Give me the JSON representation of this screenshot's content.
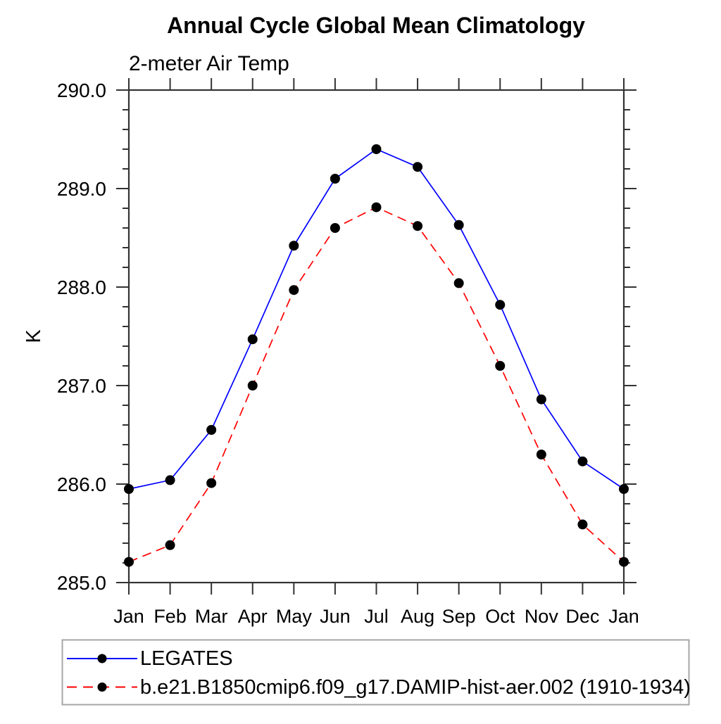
{
  "chart_data": {
    "type": "line",
    "title": "Annual Cycle Global Mean Climatology",
    "subtitle": "2-meter Air Temp",
    "ylabel": "K",
    "ylim": [
      285.0,
      290.0
    ],
    "ytick_interval": 1.0,
    "yminor_interval": 0.2,
    "ytick_labels": [
      "285.0",
      "286.0",
      "287.0",
      "288.0",
      "289.0",
      "290.0"
    ],
    "categories": [
      "Jan",
      "Feb",
      "Mar",
      "Apr",
      "May",
      "Jun",
      "Jul",
      "Aug",
      "Sep",
      "Oct",
      "Nov",
      "Dec",
      "Jan"
    ],
    "grid": false,
    "legend_position": "bottom",
    "series": [
      {
        "name": "LEGATES",
        "color": "#0000ff",
        "line_style": "solid",
        "marker": "filled-circle",
        "marker_color": "#000000",
        "values": [
          285.95,
          286.04,
          286.55,
          287.47,
          288.42,
          289.1,
          289.4,
          289.22,
          288.63,
          287.82,
          286.86,
          286.23,
          285.95
        ]
      },
      {
        "name": "b.e21.B1850cmip6.f09_g17.DAMIP-hist-aer.002 (1910-1934)",
        "color": "#ff0000",
        "line_style": "dashed",
        "marker": "filled-circle",
        "marker_color": "#000000",
        "values": [
          285.21,
          285.38,
          286.01,
          287.0,
          287.97,
          288.6,
          288.81,
          288.62,
          288.04,
          287.2,
          286.3,
          285.59,
          285.21
        ]
      }
    ]
  },
  "colors": {
    "axis": "#333333",
    "text": "#000000",
    "legend_border": "#a6a6a6",
    "background": "#ffffff"
  }
}
